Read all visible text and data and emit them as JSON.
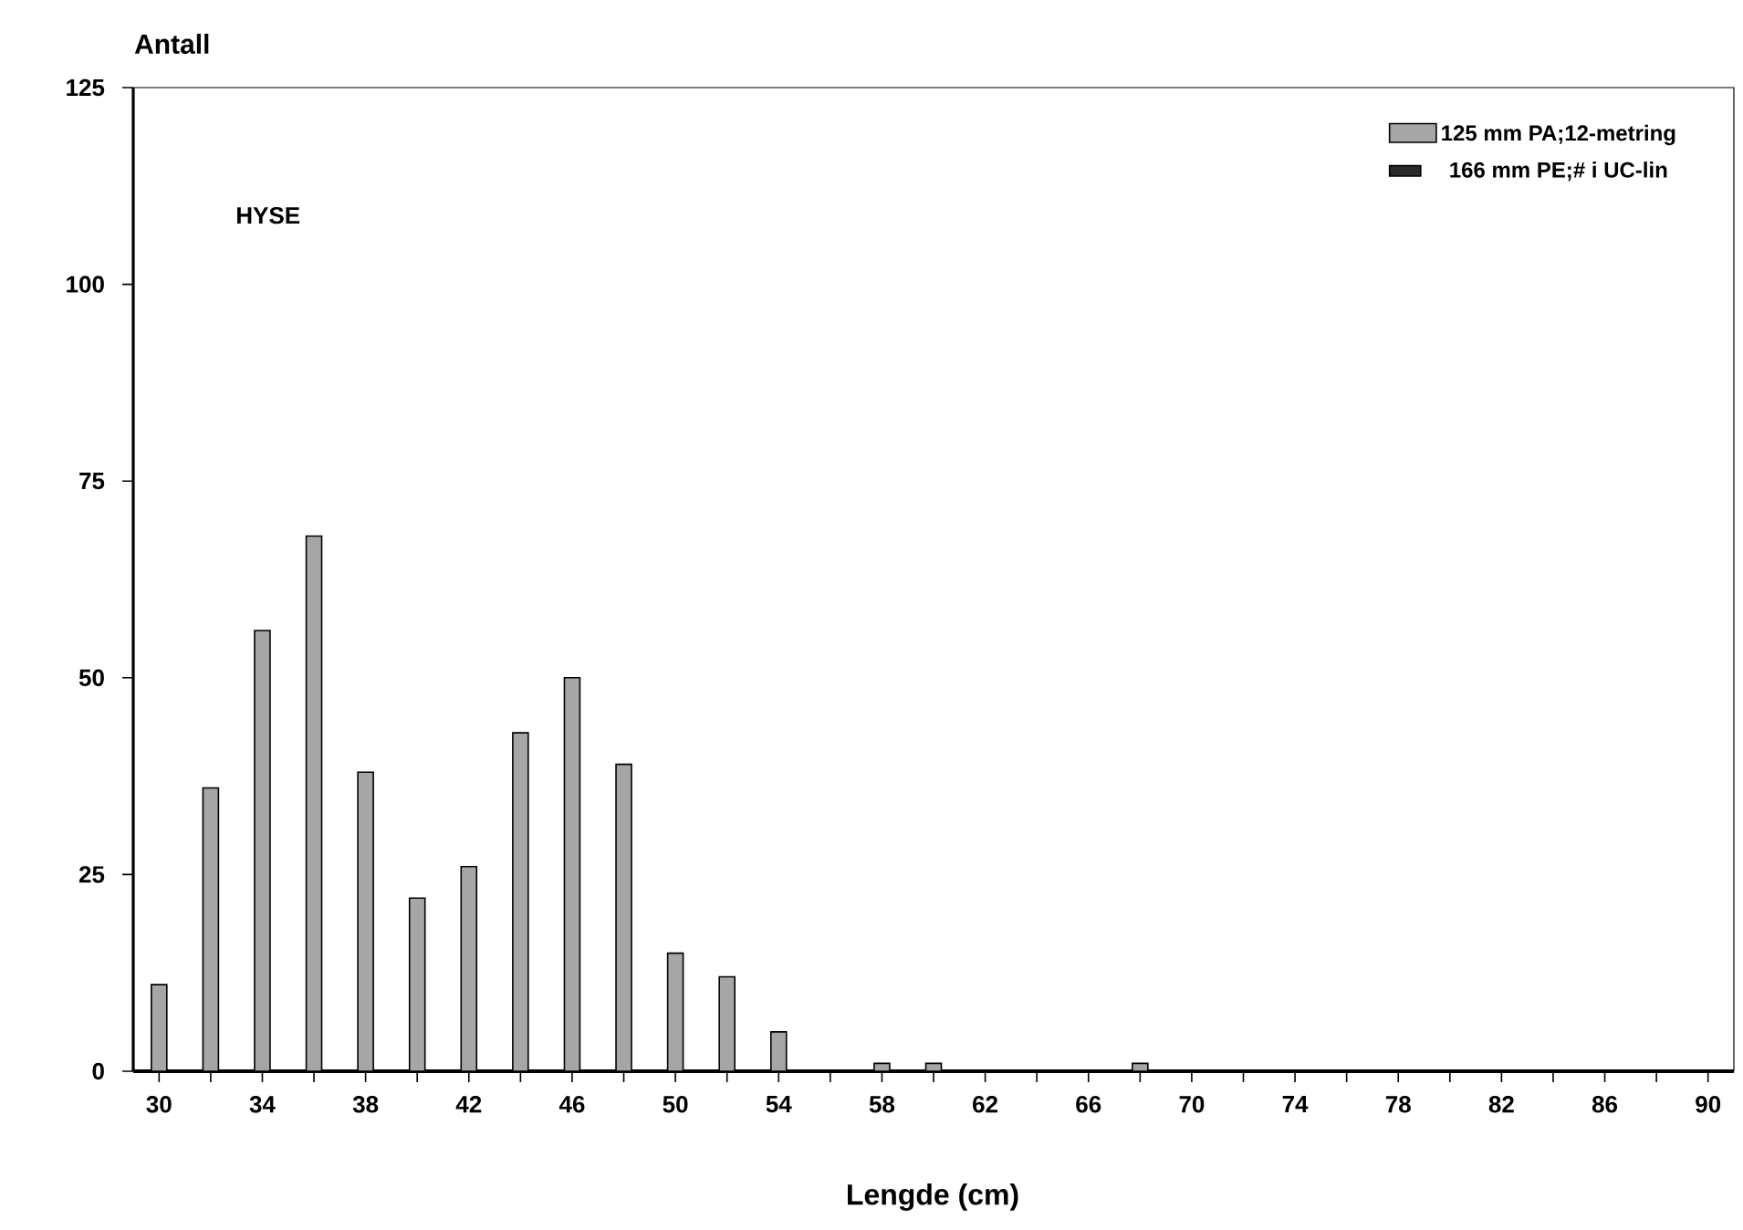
{
  "chart_data": {
    "type": "bar",
    "ylabel": "Antall",
    "xlabel": "Lengde (cm)",
    "annotations": [
      "HYSE"
    ],
    "categories": [
      "30",
      null,
      "34",
      null,
      "38",
      null,
      "42",
      null,
      "46",
      null,
      "50",
      null,
      "54",
      null,
      "58",
      null,
      "62",
      null,
      "66",
      null,
      "70",
      null,
      "74",
      null,
      "78",
      null,
      "82",
      null,
      "86",
      null,
      "90"
    ],
    "series": [
      {
        "name": "125 mm PA;12-metring",
        "color": "#a6a6a6",
        "values": [
          11,
          36,
          56,
          68,
          38,
          22,
          26,
          43,
          50,
          39,
          15,
          12,
          5,
          0,
          1,
          1,
          0,
          0,
          0,
          1,
          0,
          0,
          0,
          0,
          0,
          0,
          0,
          0,
          0,
          0,
          0
        ]
      },
      {
        "name": "166 mm PE;# i UC-lin",
        "color": "#2a2a2a",
        "values": [
          0,
          0,
          0,
          0,
          0,
          0,
          0,
          0,
          0,
          0,
          0,
          0,
          0,
          0,
          0,
          0,
          0,
          0,
          0,
          0,
          0,
          0,
          0,
          0,
          0,
          0,
          0,
          0,
          0,
          0,
          0
        ]
      }
    ],
    "ylim": [
      0,
      125
    ],
    "yticks": [
      0,
      25,
      50,
      75,
      100,
      125
    ],
    "legend": "top right",
    "grid": false
  }
}
